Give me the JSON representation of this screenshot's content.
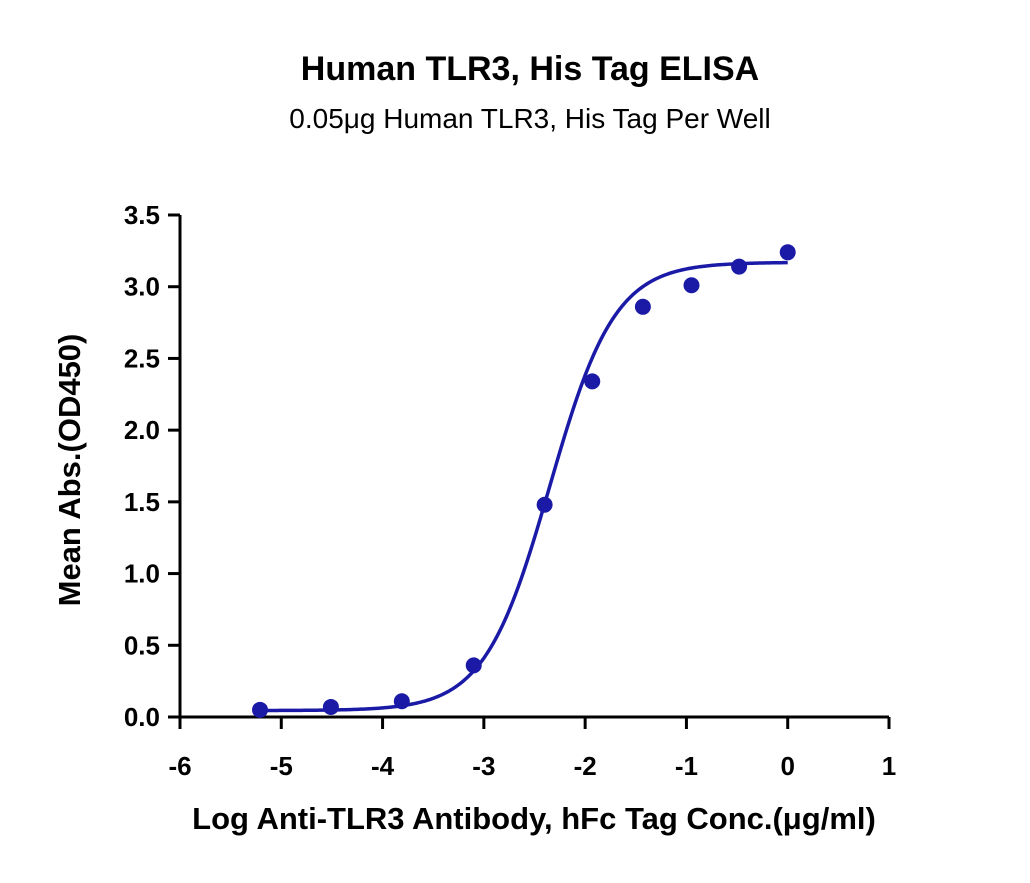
{
  "chart_data": {
    "type": "scatter",
    "title": "Human TLR3, His Tag ELISA",
    "subtitle": "0.05μg Human TLR3, His Tag Per Well",
    "xlabel": "Log Anti-TLR3 Antibody, hFc Tag Conc.(μg/ml)",
    "ylabel": "Mean Abs.(OD450)",
    "xlim": [
      -6,
      1
    ],
    "ylim": [
      0,
      3.5
    ],
    "x_ticks": [
      "-6",
      "-5",
      "-4",
      "-3",
      "-2",
      "-1",
      "0",
      "1"
    ],
    "y_ticks": [
      "0.0",
      "0.5",
      "1.0",
      "1.5",
      "2.0",
      "2.5",
      "3.0",
      "3.5"
    ],
    "grid": false,
    "legend": "none",
    "series": [
      {
        "x": [
          -5.21,
          -4.51,
          -3.81,
          -3.1,
          -2.4,
          -1.93,
          -1.43,
          -0.95,
          -0.48,
          0.0
        ],
        "y": [
          0.05,
          0.07,
          0.11,
          0.36,
          1.48,
          2.34,
          2.86,
          3.01,
          3.14,
          3.24
        ],
        "color": "#1a1aa6",
        "fit": "4PL sigmoid curve"
      }
    ]
  }
}
